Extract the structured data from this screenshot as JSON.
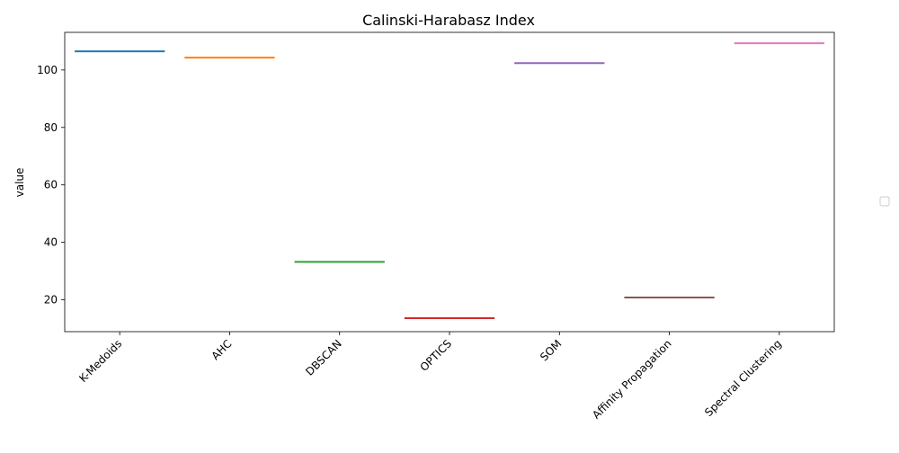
{
  "chart_data": {
    "type": "bar",
    "title": "Calinski-Harabasz Index",
    "xlabel": "",
    "ylabel": "value",
    "categories": [
      "K-Medoids",
      "AHC",
      "DBSCAN",
      "OPTICS",
      "SOM",
      "Affinity Propagation",
      "Spectral Clustering"
    ],
    "values": [
      106.5,
      104.3,
      33.2,
      13.6,
      102.4,
      20.8,
      109.3
    ],
    "colors": [
      "#1f77b4",
      "#ff7f0e",
      "#2ca02c",
      "#d62728",
      "#9467bd",
      "#8c564b",
      "#e377c2"
    ],
    "ylim": [
      8.9,
      113.1
    ],
    "yticks": [
      20,
      40,
      60,
      80,
      100
    ],
    "grid": false,
    "legend": {
      "placement": "right",
      "entries": []
    }
  }
}
